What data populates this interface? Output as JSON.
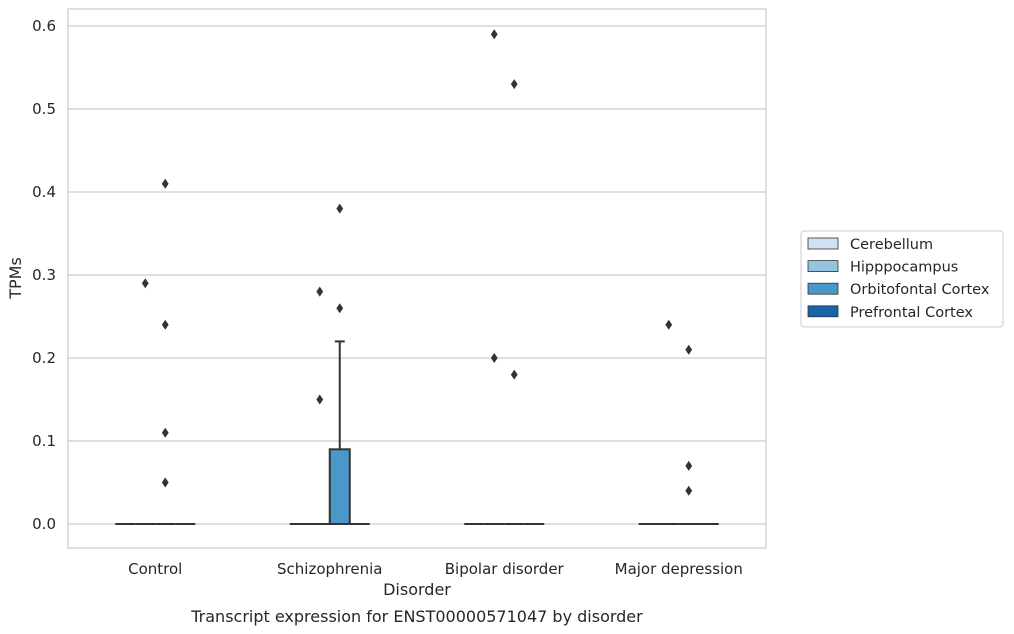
{
  "caption": "Transcript expression for ENST00000571047 by disorder",
  "chart_data": {
    "type": "box",
    "title": "",
    "xlabel": "Disorder",
    "ylabel": "TPMs",
    "ylim": [
      -0.03,
      0.62
    ],
    "yticks": [
      "0.0",
      "0.1",
      "0.2",
      "0.3",
      "0.4",
      "0.5",
      "0.6"
    ],
    "grid": "horizontal",
    "legend_position": "right",
    "categories": [
      "Control",
      "Schizophrenia",
      "Bipolar disorder",
      "Major depression"
    ],
    "series": [
      {
        "name": "Cerebellum",
        "color": "#d0e1f2",
        "boxes": [
          {
            "category": "Control",
            "q1": 0,
            "median": 0,
            "q3": 0,
            "whisker_low": 0,
            "whisker_high": 0,
            "outliers": []
          },
          {
            "category": "Schizophrenia",
            "q1": 0,
            "median": 0,
            "q3": 0,
            "whisker_low": 0,
            "whisker_high": 0,
            "outliers": []
          },
          {
            "category": "Bipolar disorder",
            "q1": 0,
            "median": 0,
            "q3": 0,
            "whisker_low": 0,
            "whisker_high": 0,
            "outliers": []
          },
          {
            "category": "Major depression",
            "q1": 0,
            "median": 0,
            "q3": 0,
            "whisker_low": 0,
            "whisker_high": 0,
            "outliers": []
          }
        ]
      },
      {
        "name": "Hipppocampus",
        "color": "#94c4df",
        "boxes": [
          {
            "category": "Control",
            "q1": 0,
            "median": 0,
            "q3": 0,
            "whisker_low": 0,
            "whisker_high": 0,
            "outliers": [
              0.29
            ]
          },
          {
            "category": "Schizophrenia",
            "q1": 0,
            "median": 0,
            "q3": 0,
            "whisker_low": 0,
            "whisker_high": 0,
            "outliers": [
              0.28,
              0.15
            ]
          },
          {
            "category": "Bipolar disorder",
            "q1": 0,
            "median": 0,
            "q3": 0,
            "whisker_low": 0,
            "whisker_high": 0,
            "outliers": [
              0.59,
              0.2
            ]
          },
          {
            "category": "Major depression",
            "q1": 0,
            "median": 0,
            "q3": 0,
            "whisker_low": 0,
            "whisker_high": 0,
            "outliers": [
              0.24
            ]
          }
        ]
      },
      {
        "name": "Orbitofontal Cortex",
        "color": "#4a98c9",
        "boxes": [
          {
            "category": "Control",
            "q1": 0,
            "median": 0,
            "q3": 0,
            "whisker_low": 0,
            "whisker_high": 0,
            "outliers": [
              0.41,
              0.24,
              0.11,
              0.05
            ]
          },
          {
            "category": "Schizophrenia",
            "q1": 0,
            "median": 0,
            "q3": 0.09,
            "whisker_low": 0,
            "whisker_high": 0.22,
            "outliers": [
              0.38,
              0.26
            ]
          },
          {
            "category": "Bipolar disorder",
            "q1": 0,
            "median": 0,
            "q3": 0,
            "whisker_low": 0,
            "whisker_high": 0,
            "outliers": [
              0.53,
              0.18
            ]
          },
          {
            "category": "Major depression",
            "q1": 0,
            "median": 0,
            "q3": 0,
            "whisker_low": 0,
            "whisker_high": 0,
            "outliers": [
              0.21,
              0.07,
              0.04
            ]
          }
        ]
      },
      {
        "name": "Prefrontal Cortex",
        "color": "#1764ab",
        "boxes": [
          {
            "category": "Control",
            "q1": 0,
            "median": 0,
            "q3": 0,
            "whisker_low": 0,
            "whisker_high": 0,
            "outliers": []
          },
          {
            "category": "Schizophrenia",
            "q1": 0,
            "median": 0,
            "q3": 0,
            "whisker_low": 0,
            "whisker_high": 0,
            "outliers": []
          },
          {
            "category": "Bipolar disorder",
            "q1": 0,
            "median": 0,
            "q3": 0,
            "whisker_low": 0,
            "whisker_high": 0,
            "outliers": []
          },
          {
            "category": "Major depression",
            "q1": 0,
            "median": 0,
            "q3": 0,
            "whisker_low": 0,
            "whisker_high": 0,
            "outliers": []
          }
        ]
      }
    ]
  },
  "legend": {
    "items": [
      {
        "label": "Cerebellum",
        "color": "#d0e1f2"
      },
      {
        "label": "Hipppocampus",
        "color": "#94c4df"
      },
      {
        "label": "Orbitofontal Cortex",
        "color": "#4a98c9"
      },
      {
        "label": "Prefrontal Cortex",
        "color": "#1764ab"
      }
    ]
  }
}
